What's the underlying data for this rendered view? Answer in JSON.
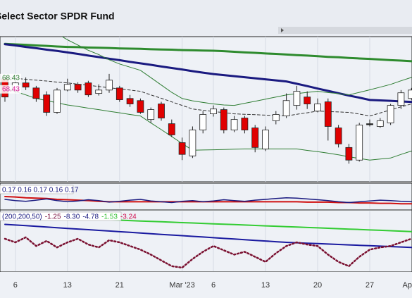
{
  "chart_data": [
    {
      "type": "candlestick",
      "title": "Select Sector SPDR Fund",
      "categories": [
        null,
        "6",
        null,
        null,
        null,
        null,
        "13",
        null,
        null,
        null,
        null,
        "21",
        null,
        null,
        null,
        null,
        null,
        "Mar '23",
        null,
        null,
        "6",
        null,
        null,
        null,
        null,
        "13",
        null,
        null,
        null,
        null,
        "20",
        null,
        null,
        null,
        null,
        "27",
        null,
        null,
        null,
        null,
        "Ap"
      ],
      "open": [
        68.7,
        68.16,
        68.5,
        68.26,
        67.93,
        67.1,
        68.16,
        68.43,
        68.5,
        68.0,
        68.16,
        68.26,
        67.76,
        67.66,
        66.76,
        67.5,
        66.56,
        65.66,
        65.03,
        66.26,
        67.03,
        67.23,
        66.26,
        66.83,
        66.36,
        65.36,
        66.7,
        66.93,
        67.43,
        67.83,
        67.16,
        67.6,
        66.36,
        65.43,
        64.83,
        66.56,
        66.43,
        66.6,
        67.43,
        67.76,
        null
      ],
      "high": [
        68.83,
        68.7,
        68.76,
        68.36,
        68.1,
        68.26,
        68.7,
        68.53,
        68.6,
        68.43,
        68.93,
        68.36,
        67.93,
        67.76,
        67.33,
        67.6,
        66.76,
        65.9,
        66.43,
        67.16,
        67.43,
        67.33,
        66.93,
        66.93,
        66.5,
        66.43,
        67.16,
        68.0,
        68.36,
        68.1,
        67.76,
        67.76,
        66.5,
        65.6,
        66.6,
        66.76,
        66.83,
        67.5,
        68.16,
        68.26,
        null
      ],
      "low": [
        67.6,
        68.03,
        68.16,
        67.6,
        66.93,
        67.03,
        68.1,
        68.03,
        67.83,
        67.9,
        68.03,
        67.6,
        67.36,
        67.03,
        66.6,
        66.7,
        65.93,
        64.83,
        64.93,
        66.1,
        66.9,
        66.1,
        66.16,
        66.1,
        65.2,
        65.26,
        66.53,
        66.83,
        67.23,
        67.26,
        67.1,
        65.76,
        65.43,
        64.66,
        64.76,
        66.43,
        66.36,
        66.5,
        67.26,
        67.7,
        null
      ],
      "close": [
        67.83,
        68.5,
        68.3,
        67.76,
        67.1,
        68.16,
        68.43,
        68.16,
        67.93,
        68.16,
        68.63,
        67.7,
        67.5,
        67.1,
        67.23,
        66.83,
        66.03,
        65.1,
        66.26,
        67.0,
        67.26,
        66.26,
        66.76,
        66.26,
        65.43,
        66.26,
        67.0,
        67.66,
        68.1,
        67.5,
        67.5,
        66.43,
        65.6,
        64.83,
        66.5,
        66.56,
        66.7,
        67.43,
        68.03,
        68.16,
        null
      ],
      "up_color": "#ffffff",
      "down_color": "#e00000",
      "outline_color": "#222222",
      "ylim": [
        63.8,
        70.7
      ],
      "grid": true,
      "price_tags": [
        {
          "value": 68.43,
          "color": "#2e7d32"
        },
        {
          "value": 68.43,
          "color": "#d81b9a"
        }
      ],
      "overlays": [
        {
          "color": "#2e8b2e",
          "width": 3,
          "dash": false,
          "values": [
            70.36,
            70.33,
            70.31,
            70.28,
            70.26,
            70.23,
            70.21,
            70.2,
            70.18,
            70.17,
            70.16,
            70.14,
            70.13,
            70.12,
            70.1,
            70.09,
            70.08,
            70.06,
            70.05,
            70.04,
            70.03,
            70.01,
            69.98,
            69.95,
            69.93,
            69.9,
            69.88,
            69.85,
            69.82,
            69.8,
            69.77,
            69.74,
            69.72,
            69.69,
            69.66,
            69.64,
            69.61,
            69.58,
            69.56,
            69.53,
            null
          ]
        },
        {
          "color": "#1a1a80",
          "width": 3,
          "dash": false,
          "values": [
            70.34,
            70.28,
            70.21,
            70.15,
            70.08,
            70.02,
            69.95,
            69.88,
            69.8,
            69.73,
            69.65,
            69.58,
            69.5,
            69.43,
            69.36,
            69.28,
            69.21,
            69.14,
            69.06,
            68.99,
            68.92,
            68.87,
            68.82,
            68.77,
            68.72,
            68.67,
            68.62,
            68.57,
            68.46,
            68.35,
            68.23,
            68.12,
            68.01,
            67.9,
            67.8,
            67.69,
            67.67,
            67.65,
            67.62,
            67.6,
            null
          ]
        },
        {
          "color": "#2e7d32",
          "width": 1,
          "dash": false,
          "values": [
            72.2,
            72.0,
            71.7,
            71.4,
            71.1,
            70.85,
            70.55,
            70.3,
            70.05,
            69.85,
            69.6,
            69.4,
            69.25,
            69.1,
            68.75,
            68.4,
            68.05,
            67.76,
            67.65,
            67.57,
            67.5,
            67.45,
            67.43,
            67.53,
            67.63,
            67.73,
            67.83,
            67.93,
            67.99,
            68.05,
            68.1,
            68.04,
            67.99,
            67.93,
            68.05,
            68.17,
            68.3,
            68.43,
            68.6,
            68.76,
            null
          ]
        },
        {
          "color": "#2e7d32",
          "width": 1,
          "dash": false,
          "values": [
            68.26,
            68.09,
            67.93,
            67.76,
            67.66,
            67.55,
            67.45,
            67.38,
            67.3,
            67.23,
            67.15,
            67.08,
            67.0,
            66.93,
            66.6,
            66.28,
            65.95,
            65.62,
            65.3,
            65.31,
            65.32,
            65.33,
            65.35,
            65.36,
            65.36,
            65.36,
            65.36,
            65.36,
            65.36,
            65.29,
            65.23,
            65.16,
            65.08,
            64.99,
            64.91,
            64.83,
            64.88,
            64.93,
            65.1,
            65.26,
            null
          ]
        },
        {
          "color": "#333333",
          "width": 1,
          "dash": true,
          "values": [
            68.76,
            68.72,
            68.67,
            68.63,
            68.59,
            68.54,
            68.5,
            68.44,
            68.39,
            68.33,
            68.27,
            68.21,
            68.16,
            68.1,
            67.93,
            67.77,
            67.6,
            67.43,
            67.26,
            67.2,
            67.14,
            67.09,
            67.03,
            67.01,
            66.99,
            66.97,
            66.95,
            66.93,
            67.01,
            67.08,
            67.16,
            67.14,
            67.12,
            67.1,
            67.02,
            66.93,
            67.07,
            67.22,
            67.36,
            67.5,
            null
          ]
        }
      ]
    },
    {
      "type": "line",
      "legend": [
        {
          "text": "0.17 0.16 0.17 0.16 0.17",
          "color": "#1a1a80"
        }
      ],
      "ylim": [
        0.14,
        0.2
      ],
      "overlays": [
        {
          "color": "#d01010",
          "width": 2,
          "dash": false,
          "values": [
            0.17,
            0.169,
            0.167,
            0.166,
            0.165,
            0.163,
            0.162,
            0.161,
            0.16,
            0.158,
            0.157,
            0.157,
            0.157,
            0.157,
            0.157,
            0.157,
            0.157,
            0.157,
            0.157,
            0.157,
            0.157,
            0.157,
            0.157,
            0.157,
            0.157,
            0.157,
            0.157,
            0.157,
            0.157,
            0.156,
            0.156,
            0.156,
            0.155,
            0.155,
            0.154,
            0.154,
            0.153,
            0.153,
            0.152,
            0.152,
            null
          ]
        },
        {
          "color": "#1a1a80",
          "width": 1.5,
          "dash": false,
          "values": [
            0.163,
            0.16,
            0.158,
            0.161,
            0.164,
            0.16,
            0.157,
            0.159,
            0.162,
            0.16,
            0.156,
            0.158,
            0.161,
            0.163,
            0.159,
            0.157,
            0.155,
            0.158,
            0.16,
            0.157,
            0.159,
            0.162,
            0.16,
            0.158,
            0.161,
            0.163,
            0.165,
            0.167,
            0.166,
            0.164,
            0.162,
            0.16,
            0.157,
            0.155,
            0.157,
            0.159,
            0.161,
            0.16,
            0.158,
            0.157,
            null
          ]
        }
      ]
    },
    {
      "type": "line",
      "legend": [
        {
          "text": "(200,200,50)",
          "color": "#1a1a80"
        },
        {
          "text": "-1.25",
          "color": "#7a1040"
        },
        {
          "text": "-8.30",
          "color": "#1a1a80"
        },
        {
          "text": "-4.78",
          "color": "#1a1a80"
        },
        {
          "text": "-1.53",
          "color": "#2fbf2f"
        },
        {
          "text": "-3.24",
          "color": "#d01050"
        }
      ],
      "ylim": [
        -12,
        2
      ],
      "overlays": [
        {
          "color": "#33cc33",
          "width": 2,
          "dash": false,
          "values": [
            0.99,
            0.89,
            0.8,
            0.7,
            0.61,
            0.51,
            0.42,
            0.32,
            0.23,
            0.13,
            0.04,
            -0.06,
            -0.15,
            -0.25,
            -0.34,
            -0.44,
            -0.53,
            -0.63,
            -0.72,
            -0.82,
            -0.91,
            -1.01,
            -1.1,
            -1.2,
            -1.29,
            -1.39,
            -1.48,
            -1.58,
            -1.67,
            -1.77,
            -1.86,
            -1.96,
            -2.05,
            -2.15,
            -2.24,
            -2.34,
            -2.43,
            -2.53,
            -2.62,
            -2.72,
            null
          ]
        },
        {
          "color": "#1a1aa0",
          "width": 2,
          "dash": false,
          "values": [
            -1.04,
            -1.2,
            -1.35,
            -1.51,
            -1.66,
            -1.82,
            -1.98,
            -2.13,
            -2.29,
            -2.44,
            -2.6,
            -2.76,
            -2.91,
            -3.07,
            -3.22,
            -3.38,
            -3.54,
            -3.69,
            -3.85,
            -4.0,
            -4.16,
            -4.32,
            -4.47,
            -4.63,
            -4.78,
            -4.94,
            -5.1,
            -5.25,
            -5.35,
            -5.45,
            -5.55,
            -5.64,
            -5.74,
            -5.84,
            -5.94,
            -6.04,
            -6.14,
            -6.23,
            -6.33,
            -6.43,
            null
          ]
        },
        {
          "color": "#7a1030",
          "width": 2.5,
          "dash": true,
          "values": [
            -4.41,
            -5.25,
            -4.07,
            -6.1,
            -4.92,
            -6.43,
            -5.25,
            -4.41,
            -5.76,
            -6.43,
            -4.75,
            -5.25,
            -6.1,
            -6.94,
            -8.12,
            -9.47,
            -10.82,
            -11.16,
            -9.13,
            -7.45,
            -6.1,
            -7.11,
            -8.12,
            -7.45,
            -8.63,
            -9.81,
            -7.79,
            -6.1,
            -5.25,
            -5.76,
            -6.1,
            -8.12,
            -9.81,
            -10.82,
            -8.63,
            -6.94,
            -6.43,
            -6.1,
            -5.25,
            -4.41,
            null
          ]
        }
      ]
    }
  ]
}
